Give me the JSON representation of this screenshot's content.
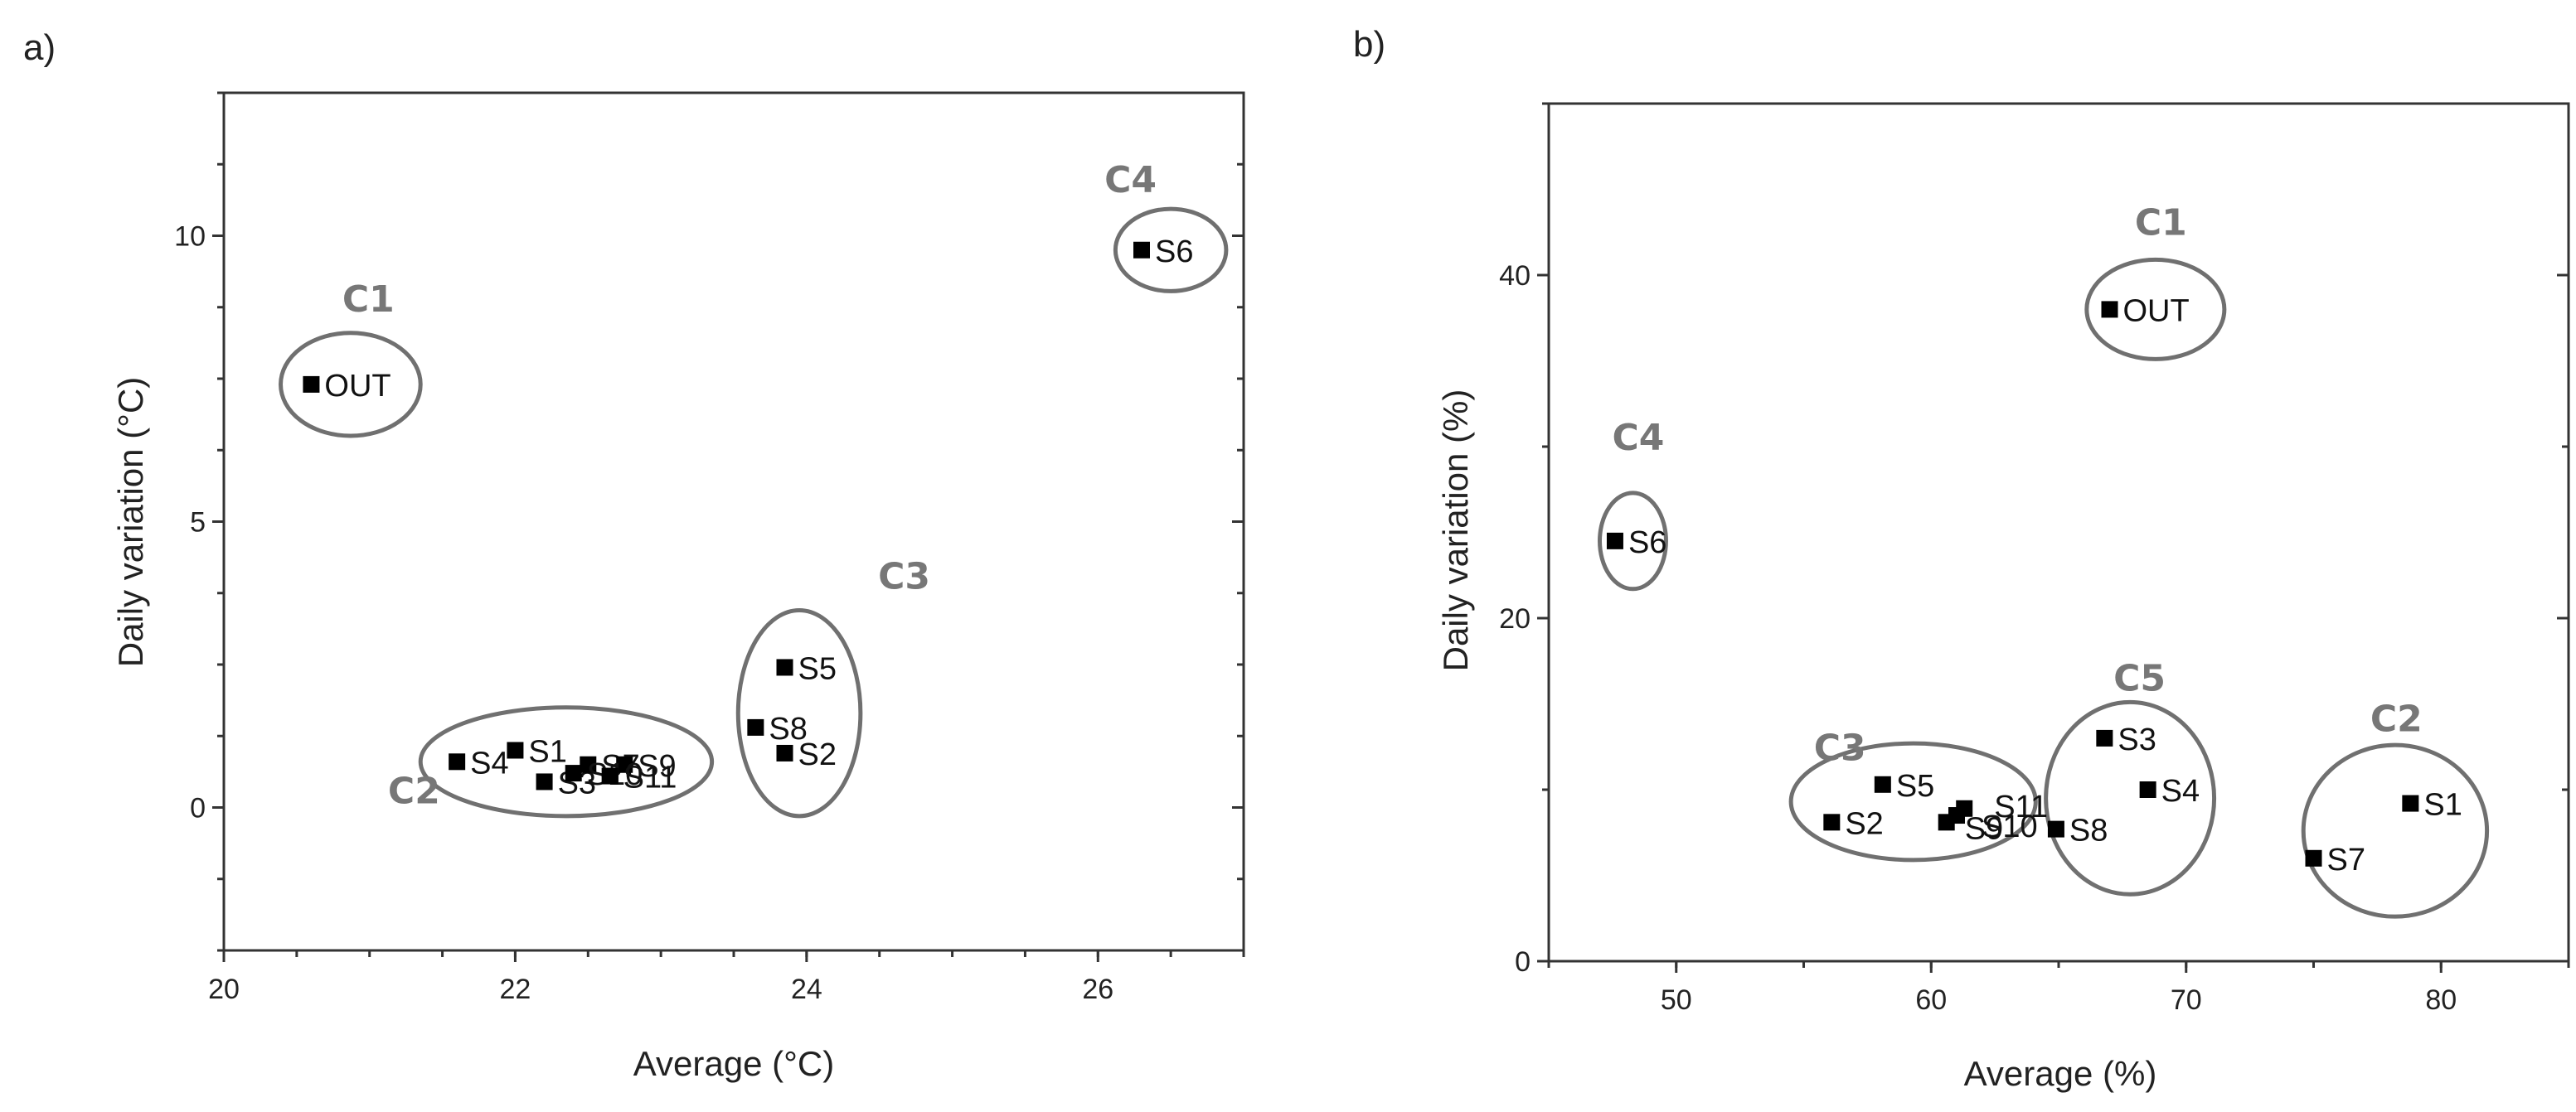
{
  "chart_data": [
    {
      "panel": "a)",
      "type": "scatter",
      "xlabel": "Average (°C)",
      "ylabel": "Daily variation (°C)",
      "xlim": [
        20,
        27
      ],
      "ylim": [
        -2.5,
        12.5
      ],
      "xticks": [
        20,
        22,
        24,
        26
      ],
      "yticks": [
        0,
        5,
        10
      ],
      "points": [
        {
          "label": "OUT",
          "x": 20.6,
          "y": 7.4
        },
        {
          "label": "S1",
          "x": 22.0,
          "y": 1.0
        },
        {
          "label": "S2",
          "x": 23.85,
          "y": 0.95
        },
        {
          "label": "S3",
          "x": 22.2,
          "y": 0.45
        },
        {
          "label": "S4",
          "x": 21.6,
          "y": 0.8
        },
        {
          "label": "S5",
          "x": 23.85,
          "y": 2.45
        },
        {
          "label": "S6",
          "x": 26.3,
          "y": 9.75
        },
        {
          "label": "S7",
          "x": 22.5,
          "y": 0.75
        },
        {
          "label": "S8",
          "x": 23.65,
          "y": 1.4
        },
        {
          "label": "S9",
          "x": 22.75,
          "y": 0.75
        },
        {
          "label": "S10",
          "x": 22.4,
          "y": 0.6
        },
        {
          "label": "S11",
          "x": 22.65,
          "y": 0.55
        }
      ],
      "clusters": [
        {
          "label": "C1",
          "cx": 20.87,
          "cy": 7.4,
          "rx": 0.48,
          "ry": 0.9
        },
        {
          "label": "C2",
          "cx": 22.35,
          "cy": 0.8,
          "rx": 1.0,
          "ry": 0.95
        },
        {
          "label": "C3",
          "cx": 23.95,
          "cy": 1.65,
          "rx": 0.42,
          "ry": 1.8
        },
        {
          "label": "C4",
          "cx": 26.5,
          "cy": 9.75,
          "rx": 0.38,
          "ry": 0.72
        }
      ]
    },
    {
      "panel": "b)",
      "type": "scatter",
      "xlabel": "Average (%)",
      "ylabel": "Daily variation (%)",
      "xlim": [
        45,
        85
      ],
      "ylim": [
        0,
        50
      ],
      "xticks": [
        50,
        60,
        70,
        80
      ],
      "yticks": [
        0,
        20,
        40
      ],
      "points": [
        {
          "label": "OUT",
          "x": 67.0,
          "y": 38.0
        },
        {
          "label": "S6",
          "x": 47.6,
          "y": 24.5
        },
        {
          "label": "S1",
          "x": 78.8,
          "y": 9.2
        },
        {
          "label": "S2",
          "x": 56.1,
          "y": 8.1
        },
        {
          "label": "S3",
          "x": 66.8,
          "y": 13.0
        },
        {
          "label": "S4",
          "x": 68.5,
          "y": 10.0
        },
        {
          "label": "S5",
          "x": 58.1,
          "y": 10.3
        },
        {
          "label": "S7",
          "x": 75.0,
          "y": 6.0
        },
        {
          "label": "S8",
          "x": 64.9,
          "y": 7.7
        },
        {
          "label": "S9",
          "x": 60.6,
          "y": 8.1
        },
        {
          "label": "S10",
          "x": 61.0,
          "y": 8.5
        },
        {
          "label": "S11",
          "x": 61.3,
          "y": 8.9
        }
      ],
      "clusters": [
        {
          "label": "C1",
          "cx": 68.8,
          "cy": 38.0,
          "rx": 2.7,
          "ry": 2.9
        },
        {
          "label": "C2",
          "cx": 78.2,
          "cy": 7.6,
          "rx": 3.6,
          "ry": 5.0
        },
        {
          "label": "C3",
          "cx": 59.3,
          "cy": 9.3,
          "rx": 4.8,
          "ry": 3.4
        },
        {
          "label": "C4",
          "cx": 48.3,
          "cy": 24.5,
          "rx": 1.3,
          "ry": 2.8
        },
        {
          "label": "C5",
          "cx": 67.8,
          "cy": 9.5,
          "rx": 3.3,
          "ry": 5.6
        }
      ]
    }
  ]
}
